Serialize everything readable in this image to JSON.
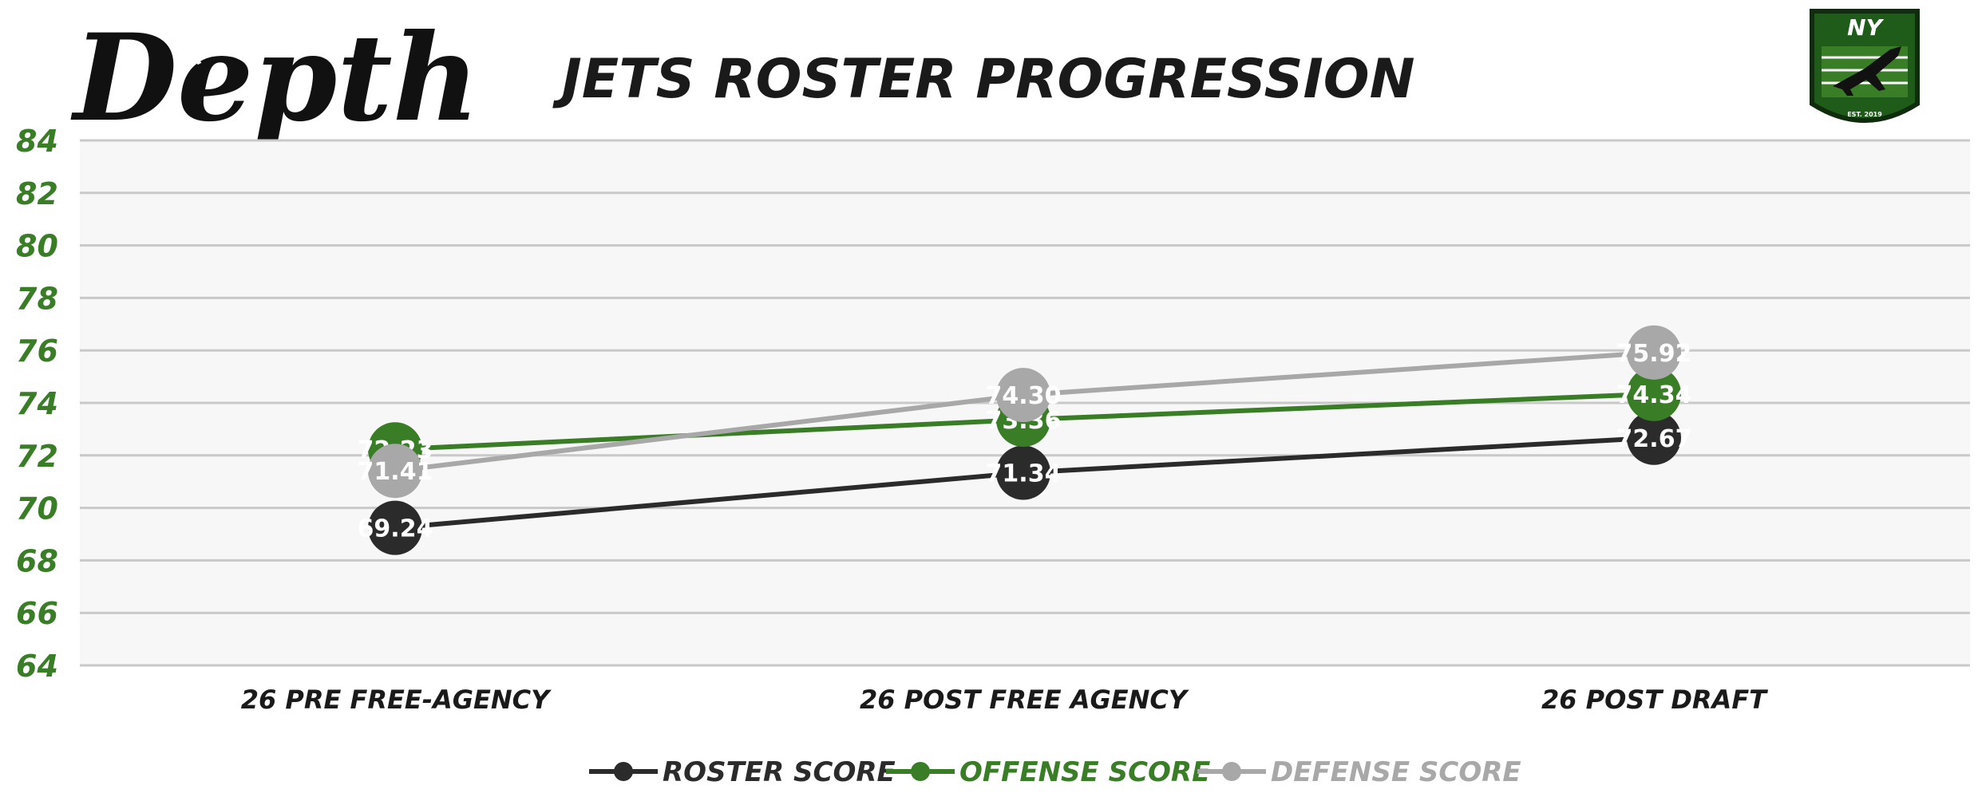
{
  "brand": {
    "logo_text": "Depth"
  },
  "badge": {
    "text": "NY",
    "small_text": "EST. 2019"
  },
  "chart_data": {
    "type": "line",
    "title": "JETS ROSTER PROGRESSION",
    "categories": [
      "26 PRE FREE-AGENCY",
      "26 POST FREE AGENCY",
      "26 POST DRAFT"
    ],
    "ylim": [
      64,
      84
    ],
    "yticks": [
      64,
      66,
      68,
      70,
      72,
      74,
      76,
      78,
      80,
      82,
      84
    ],
    "grid": true,
    "legend_position": "bottom-center",
    "colors": {
      "roster": "#2b2b2b",
      "offense": "#3a7d27",
      "defense": "#a8a8a8",
      "tick": "#3a7d27",
      "plot_bg": "#f7f7f7",
      "grid": "#c9c9c9"
    },
    "series": [
      {
        "name": "ROSTER SCORE",
        "color": "#2b2b2b",
        "values": [
          69.24,
          71.34,
          72.67
        ],
        "labels": [
          "69.24",
          "71.34",
          "72.67"
        ]
      },
      {
        "name": "OFFENSE SCORE",
        "color": "#3a7d27",
        "values": [
          72.23,
          73.36,
          74.34
        ],
        "labels": [
          "72.23",
          "73.36",
          "74.34"
        ]
      },
      {
        "name": "DEFENSE SCORE",
        "color": "#a8a8a8",
        "values": [
          71.41,
          74.3,
          75.92
        ],
        "labels": [
          "71.41",
          "74.30",
          "75.92"
        ]
      }
    ]
  }
}
